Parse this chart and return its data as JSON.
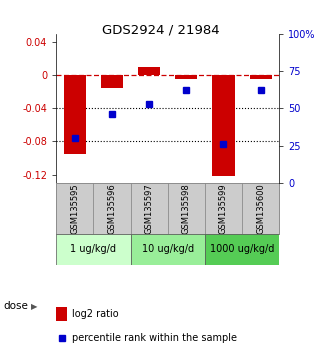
{
  "title": "GDS2924 / 21984",
  "samples": [
    "GSM135595",
    "GSM135596",
    "GSM135597",
    "GSM135598",
    "GSM135599",
    "GSM135600"
  ],
  "log2_ratios": [
    -0.095,
    -0.015,
    0.01,
    -0.005,
    -0.122,
    -0.005
  ],
  "percentile_ranks": [
    30,
    46,
    53,
    62,
    26,
    62
  ],
  "dose_groups": [
    {
      "label": "1 ug/kg/d",
      "samples": [
        0,
        1
      ],
      "color": "#ccffcc"
    },
    {
      "label": "10 ug/kg/d",
      "samples": [
        2,
        3
      ],
      "color": "#99ee99"
    },
    {
      "label": "1000 ug/kg/d",
      "samples": [
        4,
        5
      ],
      "color": "#55cc55"
    }
  ],
  "bar_color": "#cc0000",
  "dot_color": "#0000cc",
  "ylim_left": [
    -0.13,
    0.05
  ],
  "ylim_right": [
    0,
    100
  ],
  "yticks_left": [
    0.04,
    0,
    -0.04,
    -0.08,
    -0.12
  ],
  "yticks_right": [
    100,
    75,
    50,
    25,
    0
  ],
  "dotted_lines": [
    -0.04,
    -0.08
  ],
  "background_color": "#ffffff",
  "dose_label": "dose"
}
